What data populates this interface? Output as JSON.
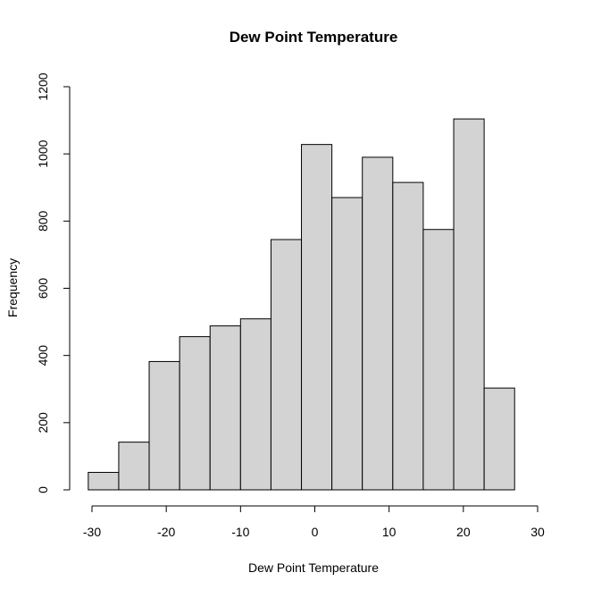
{
  "chart_data": {
    "type": "bar",
    "title": "Dew Point Temperature",
    "xlabel": "Dew Point Temperature",
    "ylabel": "Frequency",
    "bin_edges": [
      -30.5,
      -26.4,
      -22.3,
      -18.2,
      -14.1,
      -10.0,
      -5.9,
      -1.8,
      2.3,
      6.4,
      10.5,
      14.6,
      18.7,
      22.8,
      26.9
    ],
    "values": [
      52,
      142,
      382,
      456,
      488,
      509,
      745,
      1028,
      870,
      990,
      915,
      775,
      1104,
      303
    ],
    "xlim": [
      -30,
      30
    ],
    "ylim": [
      0,
      1200
    ],
    "x_ticks": [
      "-30",
      "-20",
      "-10",
      "0",
      "10",
      "20",
      "30"
    ],
    "y_ticks": [
      "0",
      "200",
      "400",
      "600",
      "800",
      "1000",
      "1200"
    ],
    "bar_fill": "#d3d3d3",
    "bar_stroke": "#000000",
    "grid": false
  }
}
